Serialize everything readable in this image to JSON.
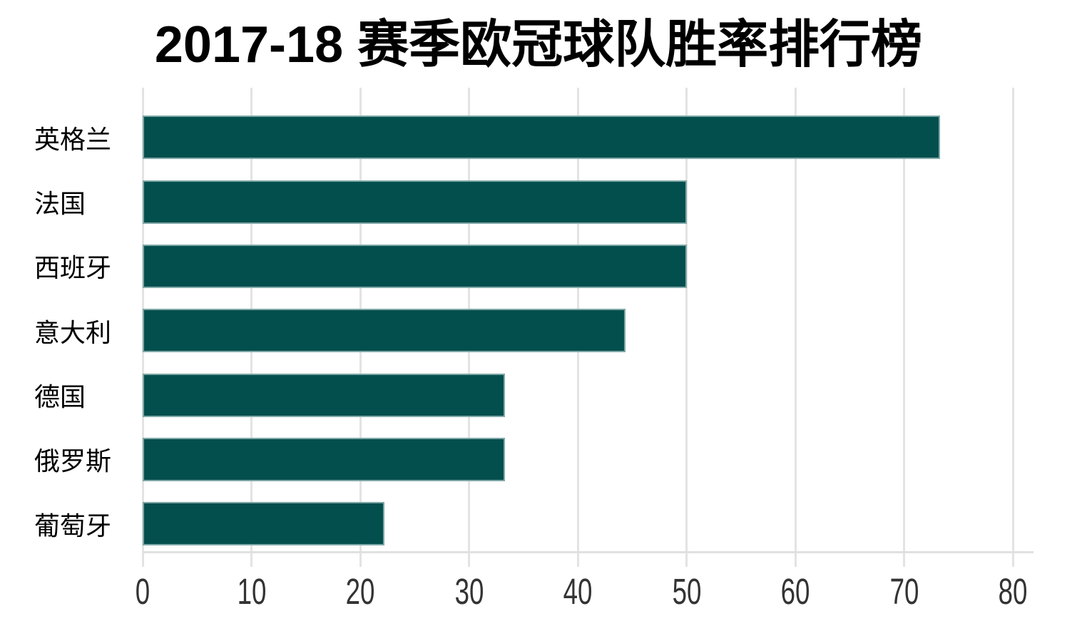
{
  "page": {
    "background": "#ffffff"
  },
  "chart_data": {
    "type": "bar",
    "orientation": "horizontal",
    "title": "2017-18 赛季欧冠球队胜率排行榜",
    "categories": [
      "英格兰",
      "法国",
      "西班牙",
      "意大利",
      "德国",
      "俄罗斯",
      "葡萄牙"
    ],
    "values": [
      73.3,
      50,
      50,
      44.4,
      33.3,
      33.3,
      22.2
    ],
    "xlabel": "",
    "ylabel": "",
    "xlim": [
      0,
      80
    ],
    "xticks": [
      0,
      10,
      20,
      30,
      40,
      50,
      60,
      70,
      80
    ],
    "grid": "vertical-only",
    "legend_position": "none",
    "bar_color": "#024f4e",
    "bar_edge_color": "#7fa7a7",
    "gridline_color": "#e3e3e3",
    "axis_line_color": "#e0e0e0",
    "tick_label_color": "#333333",
    "category_label_color": "#000000",
    "title_color": "#000000"
  }
}
